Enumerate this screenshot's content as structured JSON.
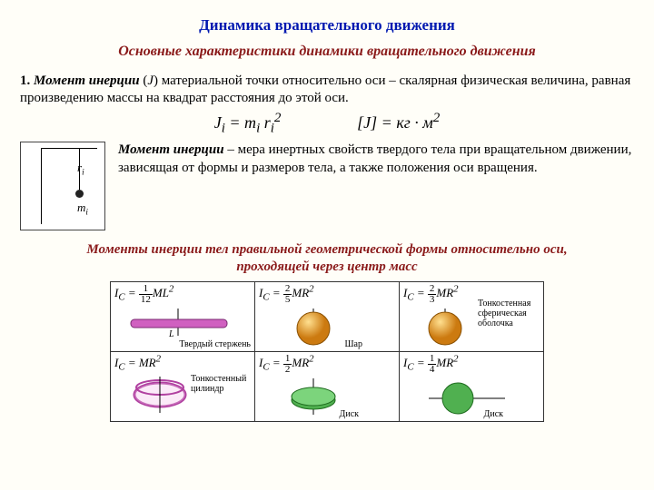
{
  "title": "Динамика вращательного движения",
  "subtitle": "Основные характеристики динамики вращательного движения",
  "section_num": "1.",
  "term": "Момент инерции",
  "var_symbol": "J",
  "definition_tail": ") материальной точки относительно оси – скалярная физическая величина, равная произведению массы на квадрат расстояния до этой оси.",
  "formula_main_html": "J<sub>i</sub> = m<sub>i</sub> r<sub>i</sub><sup>2</sup>",
  "formula_units_html": "[J] = кг · м<sup>2</sup>",
  "diagram": {
    "r_label": "r",
    "r_sub": "i",
    "m_label": "m",
    "m_sub": "i"
  },
  "note_term": "Момент инерции",
  "note_tail": " – мера инертных свойств твердого тела при вращательном движении, зависящая от формы и размеров тела, а также положения оси вращения.",
  "table_caption_l1": "Моменты инерции тел правильной геометрической формы относительно оси,",
  "table_caption_l2": "проходящей через центр масс",
  "cells": {
    "rod": {
      "formula_pre": "I<sub>C</sub> = ",
      "num": "1",
      "den": "12",
      "tail": "ML<sup>2</sup>",
      "label": "Твердый стержень",
      "Llabel": "L"
    },
    "sphere": {
      "formula_pre": "I<sub>C</sub> = ",
      "num": "2",
      "den": "5",
      "tail": "MR<sup>2</sup>",
      "label": "Шар"
    },
    "shell": {
      "formula_pre": "I<sub>C</sub> = ",
      "num": "2",
      "den": "3",
      "tail": "MR<sup>2</sup>",
      "label": "Тонкостенная сферическая оболочка"
    },
    "cylinder": {
      "formula_pre": "I<sub>C</sub> = MR<sup>2</sup>",
      "label": "Тонкостенный цилиндр"
    },
    "disk1": {
      "formula_pre": "I<sub>C</sub> = ",
      "num": "1",
      "den": "2",
      "tail": "MR<sup>2</sup>",
      "label": "Диск"
    },
    "disk2": {
      "formula_pre": "I<sub>C</sub> = ",
      "num": "1",
      "den": "4",
      "tail": "MR<sup>2</sup>",
      "label": "Диск"
    }
  },
  "colors": {
    "rod": "#d060c0",
    "sphere": "#e8a028",
    "shell": "#e8a028",
    "cyl": "#e090d0",
    "disk1": "#50b050",
    "disk2": "#50b050"
  }
}
